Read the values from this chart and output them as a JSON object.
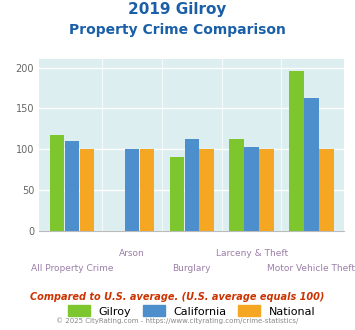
{
  "title_line1": "2019 Gilroy",
  "title_line2": "Property Crime Comparison",
  "categories": [
    "All Property Crime",
    "Arson",
    "Burglary",
    "Larceny & Theft",
    "Motor Vehicle Theft"
  ],
  "gilroy": [
    118,
    0,
    90,
    113,
    196
  ],
  "california": [
    110,
    100,
    113,
    103,
    163
  ],
  "national": [
    100,
    100,
    100,
    100,
    100
  ],
  "color_gilroy": "#7dc62e",
  "color_california": "#4d8fcc",
  "color_national": "#f5a623",
  "bg_chart": "#ddeef0",
  "bg_fig": "#ffffff",
  "ylim": [
    0,
    210
  ],
  "yticks": [
    0,
    50,
    100,
    150,
    200
  ],
  "title_color": "#1a5fa8",
  "xlabel_color": "#9b7fa8",
  "footer_text": "© 2025 CityRating.com - https://www.cityrating.com/crime-statistics/",
  "compare_text": "Compared to U.S. average. (U.S. average equals 100)",
  "compare_color": "#cc3300",
  "footer_color": "#888888",
  "legend_labels": [
    "Gilroy",
    "California",
    "National"
  ]
}
